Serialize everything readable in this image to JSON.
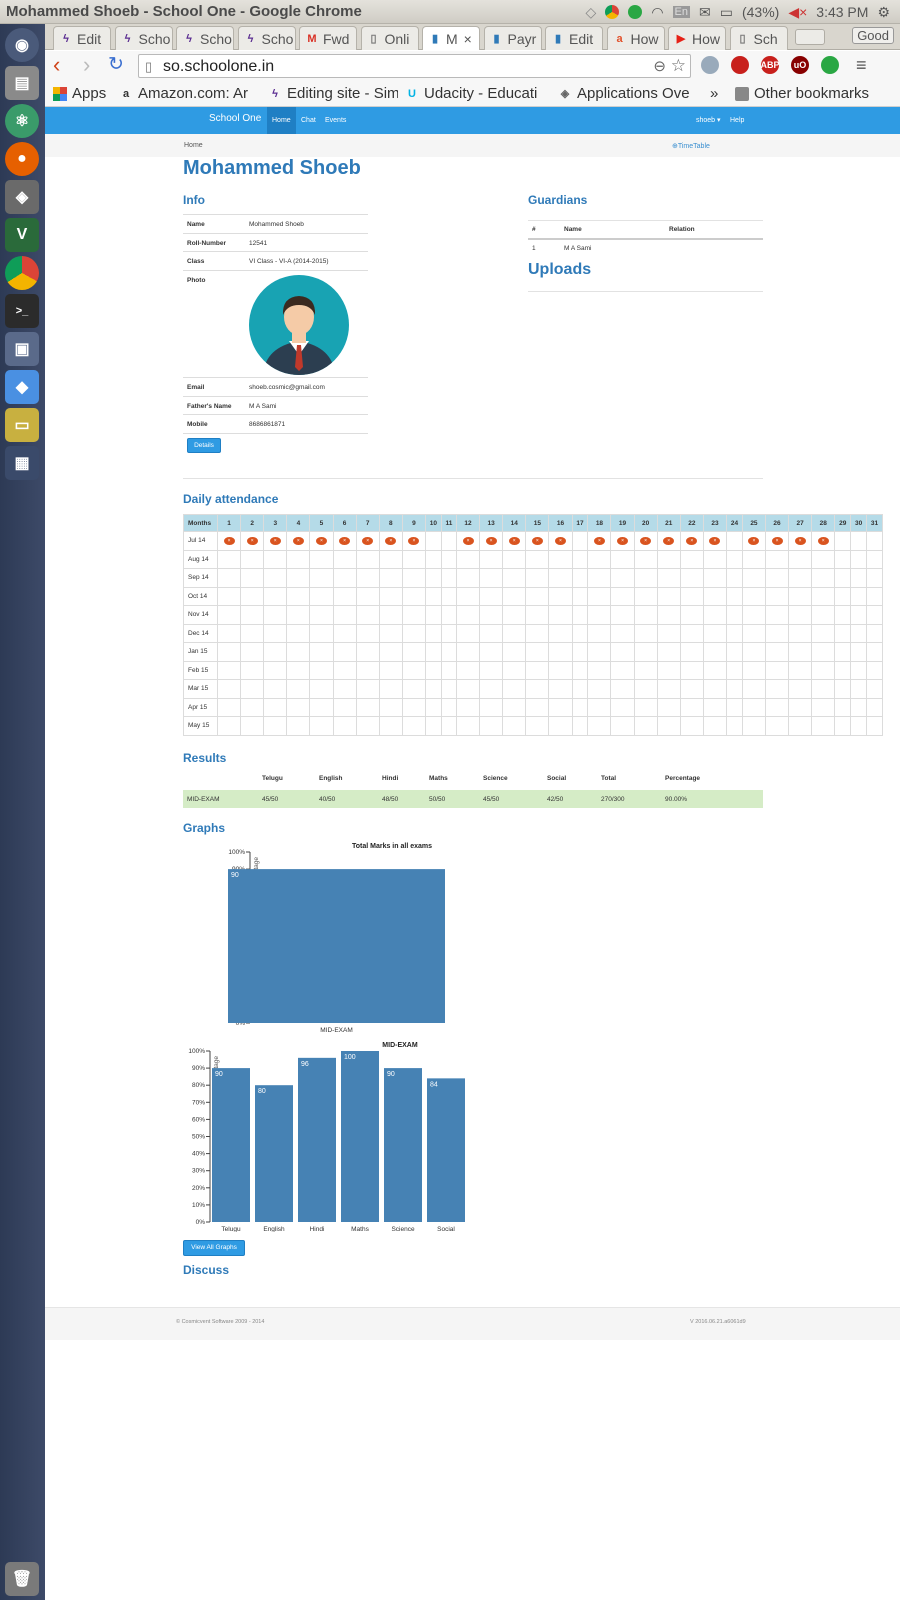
{
  "window": {
    "title": "Mohammed Shoeb - School One - Google Chrome",
    "battery": "(43%)",
    "time": "3:43 PM"
  },
  "tabs": [
    {
      "label": "Edit",
      "icon": "bolt-icon"
    },
    {
      "label": "Scho",
      "icon": "bolt-icon"
    },
    {
      "label": "Scho",
      "icon": "bolt-icon"
    },
    {
      "label": "Scho",
      "icon": "bolt-icon"
    },
    {
      "label": "Fwd",
      "icon": "gmail-icon"
    },
    {
      "label": "Onli",
      "icon": "page-icon"
    },
    {
      "label": "M",
      "icon": "app-icon",
      "active": true
    },
    {
      "label": "Payr",
      "icon": "app-icon"
    },
    {
      "label": "Edit",
      "icon": "app-icon"
    },
    {
      "label": "How",
      "icon": "ask-icon"
    },
    {
      "label": "How",
      "icon": "youtube-icon"
    },
    {
      "label": "Sch",
      "icon": "page-icon"
    }
  ],
  "profile_badge": "Good",
  "address_bar": {
    "url": "so.schoolone.in"
  },
  "bookmarks": [
    {
      "label": "Apps"
    },
    {
      "label": "Amazon.com: Ar"
    },
    {
      "label": "Editing site - Simp"
    },
    {
      "label": "Udacity - Educati"
    },
    {
      "label": "Applications Ove"
    }
  ],
  "bookmarks_other": "Other bookmarks",
  "bookmarks_more": "»",
  "app_nav": {
    "brand": "School One",
    "links": [
      "Home",
      "Chat",
      "Events"
    ],
    "user": "shoeb ▾",
    "help": "Help"
  },
  "breadcrumb": "Home",
  "timetable_link": "⊕TimeTable",
  "student_name": "Mohammed Shoeb",
  "info": {
    "heading": "Info",
    "rows": [
      {
        "k": "Name",
        "v": "Mohammed Shoeb"
      },
      {
        "k": "Roll-Number",
        "v": "12541"
      },
      {
        "k": "Class",
        "v": "VI Class - VI-A (2014-2015)"
      },
      {
        "k": "Photo",
        "v": ""
      },
      {
        "k": "Email",
        "v": "shoeb.cosmic@gmail.com"
      },
      {
        "k": "Father's Name",
        "v": "M A Sami"
      },
      {
        "k": "Mobile",
        "v": "8686861871"
      }
    ],
    "details_button": "Details"
  },
  "guardians": {
    "heading": "Guardians",
    "headers": [
      "#",
      "Name",
      "Relation"
    ],
    "rows": [
      {
        "num": "1",
        "name": "M A Sami",
        "relation": ""
      }
    ]
  },
  "uploads_heading": "Uploads",
  "attendance": {
    "heading": "Daily attendance",
    "header_label": "Months",
    "days": [
      "1",
      "2",
      "3",
      "4",
      "5",
      "6",
      "7",
      "8",
      "9",
      "10",
      "11",
      "12",
      "13",
      "14",
      "15",
      "16",
      "17",
      "18",
      "19",
      "20",
      "21",
      "22",
      "23",
      "24",
      "25",
      "26",
      "27",
      "28",
      "29",
      "30",
      "31"
    ],
    "months": [
      "Jul 14",
      "Aug 14",
      "Sep 14",
      "Oct 14",
      "Nov 14",
      "Dec 14",
      "Jan 15",
      "Feb 15",
      "Mar 15",
      "Apr 15",
      "May 15"
    ],
    "absent_jul": [
      1,
      2,
      3,
      4,
      5,
      6,
      7,
      8,
      9,
      12,
      13,
      14,
      15,
      16,
      18,
      19,
      20,
      21,
      22,
      23,
      25,
      26,
      27,
      28
    ],
    "mark": "×"
  },
  "results": {
    "heading": "Results",
    "headers": [
      "Telugu",
      "English",
      "Hindi",
      "Maths",
      "Science",
      "Social",
      "Total",
      "Percentage"
    ],
    "rows": [
      {
        "exam": "MID-EXAM",
        "values": [
          "45/50",
          "40/50",
          "48/50",
          "50/50",
          "45/50",
          "42/50",
          "270/300",
          "90.00%"
        ]
      }
    ]
  },
  "graphs_heading": "Graphs",
  "view_all_graphs": "View All Graphs",
  "discuss_heading": "Discuss",
  "footer": {
    "left": "© Cosmicvent Software 2009 - 2014",
    "right": "V 2016.06.21.a6061d9"
  },
  "chart_data": [
    {
      "type": "bar",
      "title": "Total Marks in all exams",
      "ylabel": "Percentage",
      "categories": [
        "MID-EXAM"
      ],
      "values": [
        90
      ],
      "ylim": [
        0,
        100
      ],
      "yticks": [
        "0%",
        "10%",
        "20%",
        "30%",
        "40%",
        "50%",
        "60%",
        "70%",
        "80%",
        "90%",
        "100%"
      ],
      "color": "#4682b4"
    },
    {
      "type": "bar",
      "title": "MID-EXAM",
      "ylabel": "Percentage",
      "categories": [
        "Telugu",
        "English",
        "Hindi",
        "Maths",
        "Science",
        "Social"
      ],
      "values": [
        90,
        80,
        96,
        100,
        90,
        84
      ],
      "ylim": [
        0,
        100
      ],
      "yticks": [
        "0%",
        "10%",
        "20%",
        "30%",
        "40%",
        "50%",
        "60%",
        "70%",
        "80%",
        "90%",
        "100%"
      ],
      "color": "#4682b4"
    }
  ]
}
